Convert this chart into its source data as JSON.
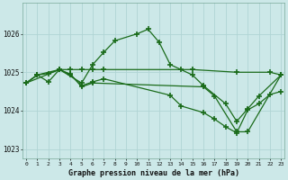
{
  "title": "Graphe pression niveau de la mer (hPa)",
  "bg_color": "#cce8e8",
  "grid_color": "#b0d4d4",
  "line_color": "#1a6b1a",
  "x_min": -0.3,
  "x_max": 23.3,
  "y_min": 1022.75,
  "y_max": 1026.8,
  "y_ticks": [
    1023,
    1024,
    1025,
    1026
  ],
  "x_ticks": [
    0,
    1,
    2,
    3,
    4,
    5,
    6,
    7,
    8,
    9,
    10,
    11,
    12,
    13,
    14,
    15,
    16,
    17,
    18,
    19,
    20,
    21,
    22,
    23
  ],
  "series": [
    {
      "x": [
        0,
        1,
        2,
        3,
        5,
        6,
        7,
        8,
        10,
        11,
        12,
        13,
        15,
        16,
        18,
        19,
        20,
        21,
        23
      ],
      "y": [
        1024.72,
        1024.93,
        1024.97,
        1025.07,
        1024.72,
        1025.2,
        1025.52,
        1025.82,
        1026.0,
        1026.12,
        1025.78,
        1025.2,
        1024.93,
        1024.65,
        1024.18,
        1023.72,
        1024.05,
        1024.38,
        1024.93
      ]
    },
    {
      "x": [
        0,
        3,
        4,
        5,
        6,
        7,
        14,
        15,
        19,
        22,
        23
      ],
      "y": [
        1024.72,
        1025.07,
        1025.07,
        1025.07,
        1025.07,
        1025.07,
        1025.07,
        1025.07,
        1025.0,
        1025.0,
        1024.93
      ]
    },
    {
      "x": [
        0,
        1,
        2,
        3,
        4,
        5,
        6,
        7,
        13,
        14,
        16,
        17,
        18,
        19,
        20,
        21,
        22,
        23
      ],
      "y": [
        1024.72,
        1024.93,
        1024.75,
        1025.07,
        1024.93,
        1024.65,
        1024.75,
        1024.83,
        1024.4,
        1024.12,
        1023.95,
        1023.78,
        1023.58,
        1023.42,
        1024.02,
        1024.18,
        1024.42,
        1024.5
      ]
    },
    {
      "x": [
        0,
        1,
        3,
        4,
        5,
        6,
        16,
        17,
        19,
        20,
        23
      ],
      "y": [
        1024.72,
        1024.93,
        1025.07,
        1024.95,
        1024.62,
        1024.72,
        1024.62,
        1024.38,
        1023.45,
        1023.45,
        1024.93
      ]
    }
  ]
}
